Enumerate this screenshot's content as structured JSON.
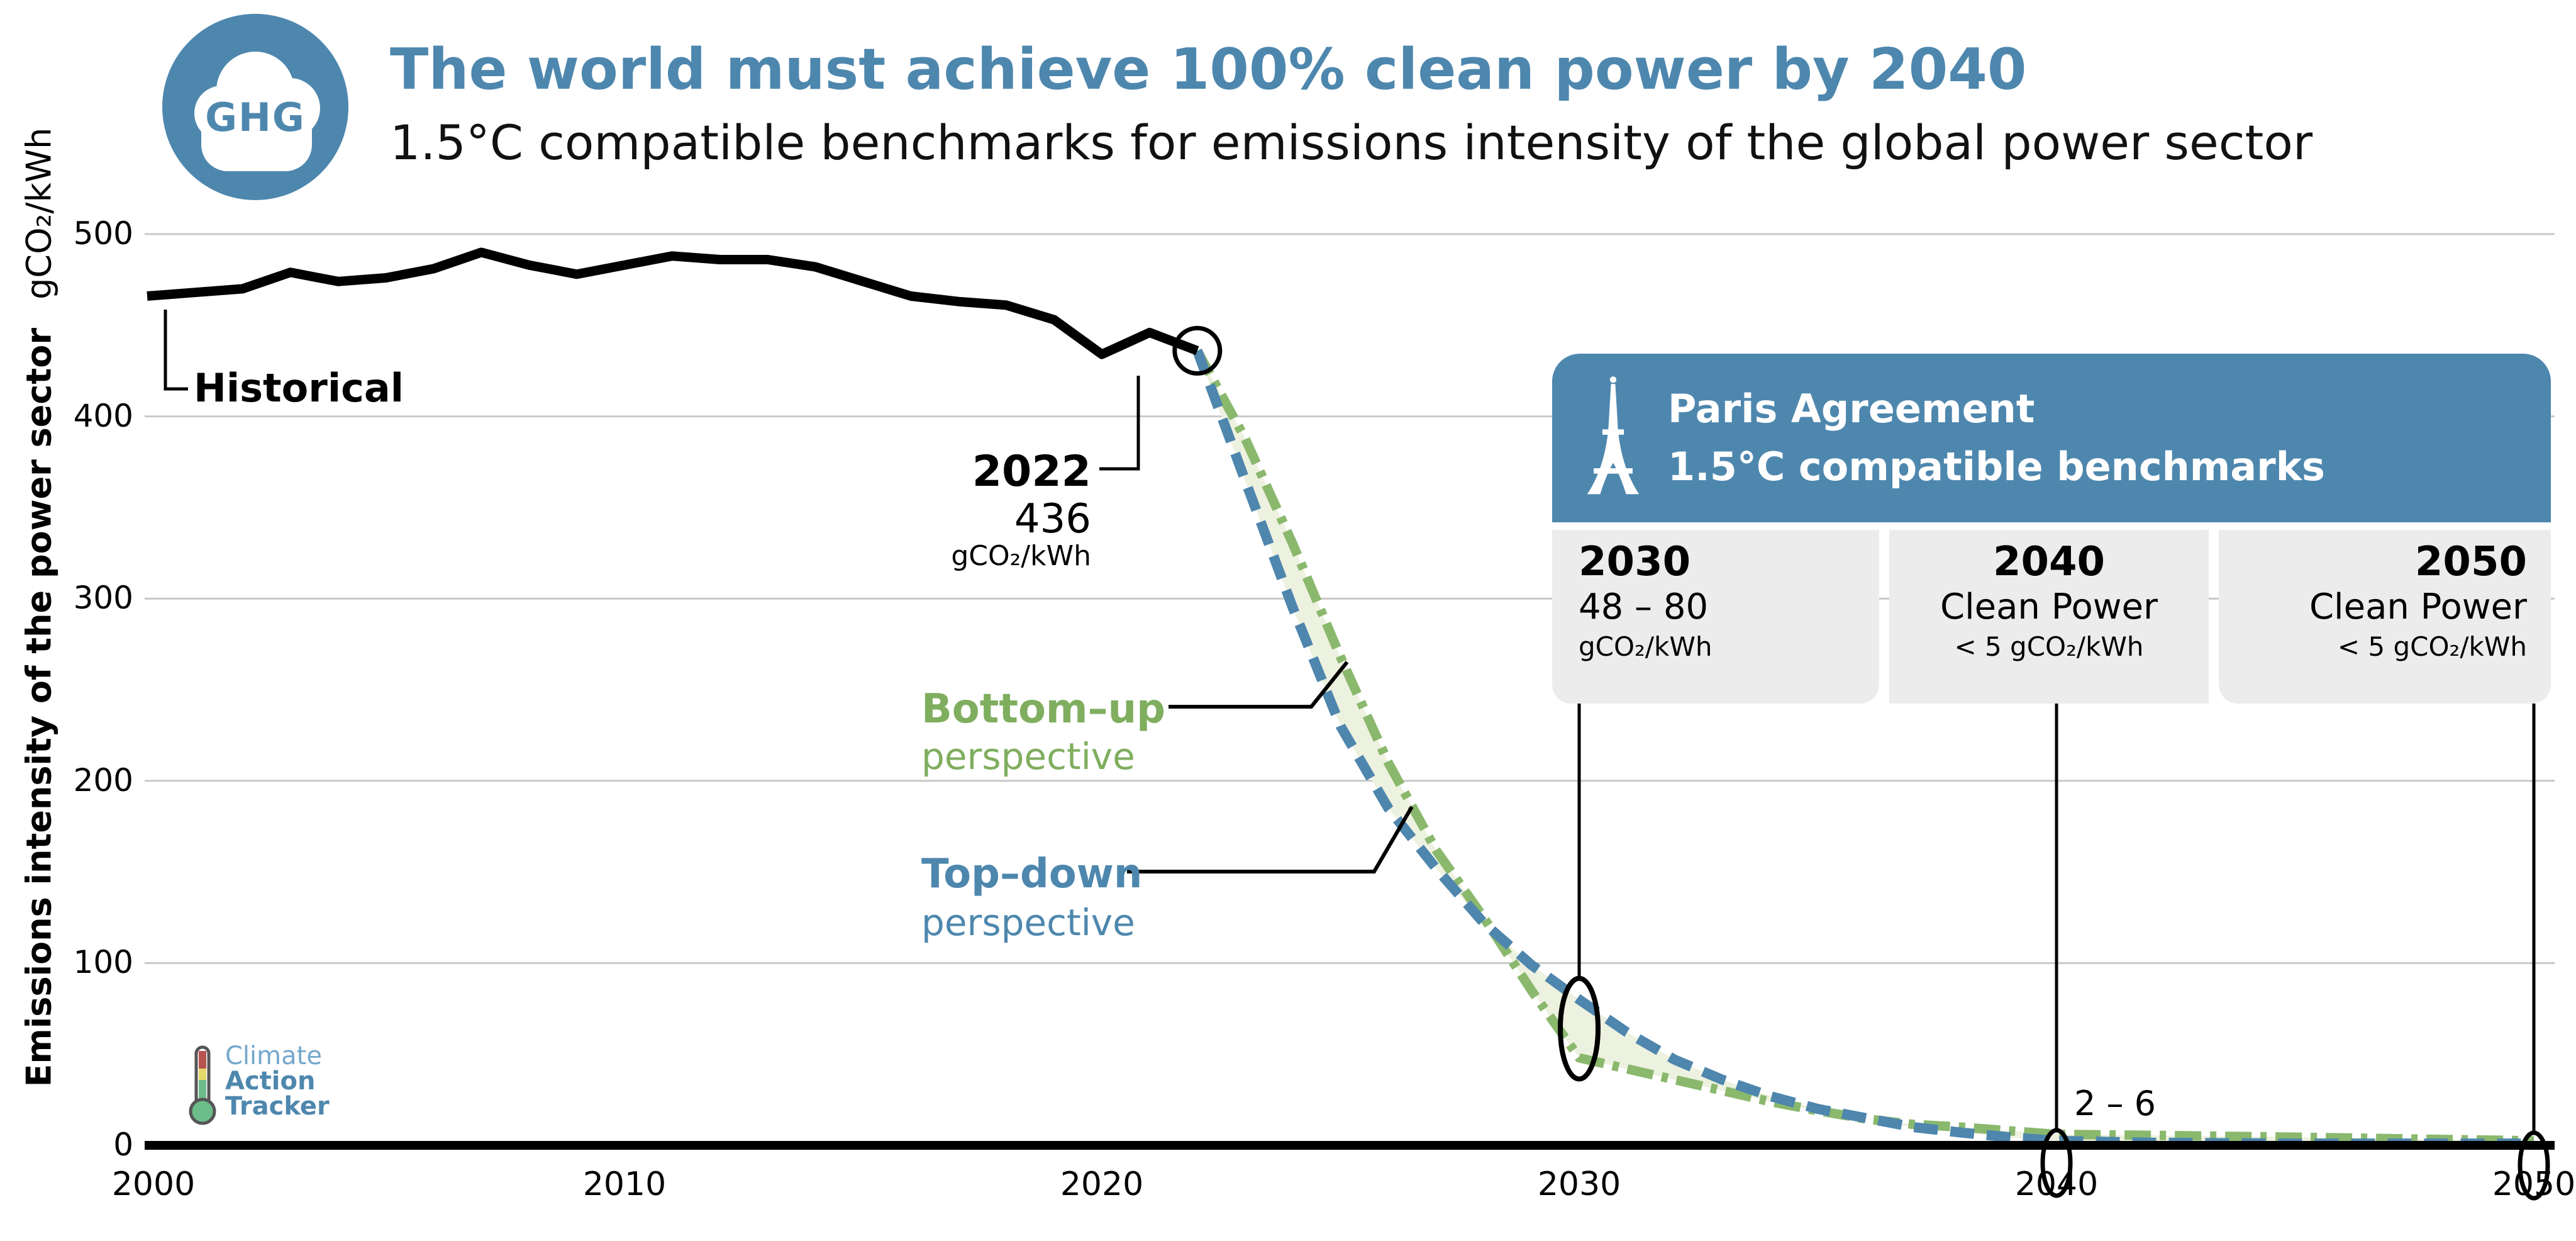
{
  "header": {
    "logo_text": "GHG",
    "title": "The world must achieve 100% clean power by 2040",
    "subtitle": "1.5°C compatible benchmarks for emissions intensity of the global power sector"
  },
  "y_axis": {
    "label": "Emissions intensity of the power sector",
    "unit": "gCO₂/kWh",
    "ticks": [
      "500",
      "400",
      "300",
      "200",
      "100",
      "0"
    ]
  },
  "x_axis": {
    "ticks": [
      "2000",
      "2010",
      "2020",
      "2030",
      "2040",
      "2050"
    ]
  },
  "annotations": {
    "historical": "Historical",
    "year_2022": "2022",
    "value_2022": "436",
    "unit_2022": "gCO₂/kWh",
    "bottom_up_line1": "Bottom–up",
    "bottom_up_line2": "perspective",
    "top_down_line1": "Top–down",
    "top_down_line2": "perspective",
    "range_2040": "2 – 6"
  },
  "paris_box": {
    "line1": "Paris Agreement",
    "line2": "1.5°C compatible benchmarks"
  },
  "benchmarks": [
    {
      "year": "2030",
      "line1": "48 – 80",
      "line2": "gCO₂/kWh"
    },
    {
      "year": "2040",
      "line1": "Clean Power",
      "line2": "< 5 gCO₂/kWh"
    },
    {
      "year": "2050",
      "line1": "Clean Power",
      "line2": "< 5 gCO₂/kWh"
    }
  ],
  "footer_logo": {
    "line1": "Climate",
    "line2": "Action",
    "line3": "Tracker"
  },
  "colors": {
    "accent_blue": "#4e87ae",
    "line_blue": "#4e86ad",
    "line_green": "#8ab86d",
    "text_green": "#7fae5f",
    "fill_between": "#edf1df",
    "panel_gray": "#ececec",
    "gridline": "#c8c8c8",
    "historical": "#000000"
  },
  "chart_data": {
    "type": "line",
    "title": "The world must achieve 100% clean power by 2040",
    "subtitle": "1.5°C compatible benchmarks for emissions intensity of the global power sector",
    "xlabel": "",
    "ylabel": "Emissions intensity of the power sector (gCO₂/kWh)",
    "xlim": [
      2000,
      2050
    ],
    "ylim": [
      0,
      500
    ],
    "grid": true,
    "series": [
      {
        "name": "Historical",
        "style": "solid",
        "color": "#000000",
        "x": [
          2000,
          2001,
          2002,
          2003,
          2004,
          2005,
          2006,
          2007,
          2008,
          2009,
          2010,
          2011,
          2012,
          2013,
          2014,
          2015,
          2016,
          2017,
          2018,
          2019,
          2020,
          2021,
          2022
        ],
        "y": [
          466,
          468,
          470,
          479,
          474,
          476,
          481,
          490,
          483,
          478,
          483,
          488,
          486,
          486,
          482,
          474,
          466,
          463,
          461,
          453,
          434,
          446,
          436
        ]
      },
      {
        "name": "Top-down perspective",
        "style": "dashed",
        "color": "#4e86ad",
        "x": [
          2022,
          2023,
          2024,
          2025,
          2026,
          2027,
          2028,
          2029,
          2030,
          2031,
          2032,
          2033,
          2034,
          2035,
          2036,
          2037,
          2038,
          2039,
          2040,
          2042,
          2045,
          2050
        ],
        "y": [
          436,
          365,
          295,
          230,
          185,
          152,
          122,
          99,
          80,
          62,
          47,
          36,
          27,
          20,
          15,
          10,
          7,
          4.5,
          2.5,
          1.5,
          1,
          1
        ]
      },
      {
        "name": "Bottom-up perspective",
        "style": "dash-dot",
        "color": "#8ab86d",
        "x": [
          2022,
          2023,
          2024,
          2025,
          2026,
          2027,
          2028,
          2029,
          2030,
          2031,
          2032,
          2033,
          2034,
          2035,
          2036,
          2037,
          2038,
          2039,
          2040,
          2042,
          2045,
          2050
        ],
        "y": [
          436,
          388,
          330,
          268,
          210,
          162,
          125,
          85,
          48,
          42,
          36,
          30,
          24,
          19,
          14.5,
          11.5,
          10,
          8,
          6,
          5.5,
          4.5,
          2.5
        ]
      }
    ],
    "key_points": {
      "historical_2022": 436,
      "benchmark_2030_range": [
        48,
        80
      ],
      "benchmark_2040_range": [
        2,
        6
      ],
      "clean_power_threshold_2040_2050": 5
    },
    "legend_position": "inline-labels"
  }
}
